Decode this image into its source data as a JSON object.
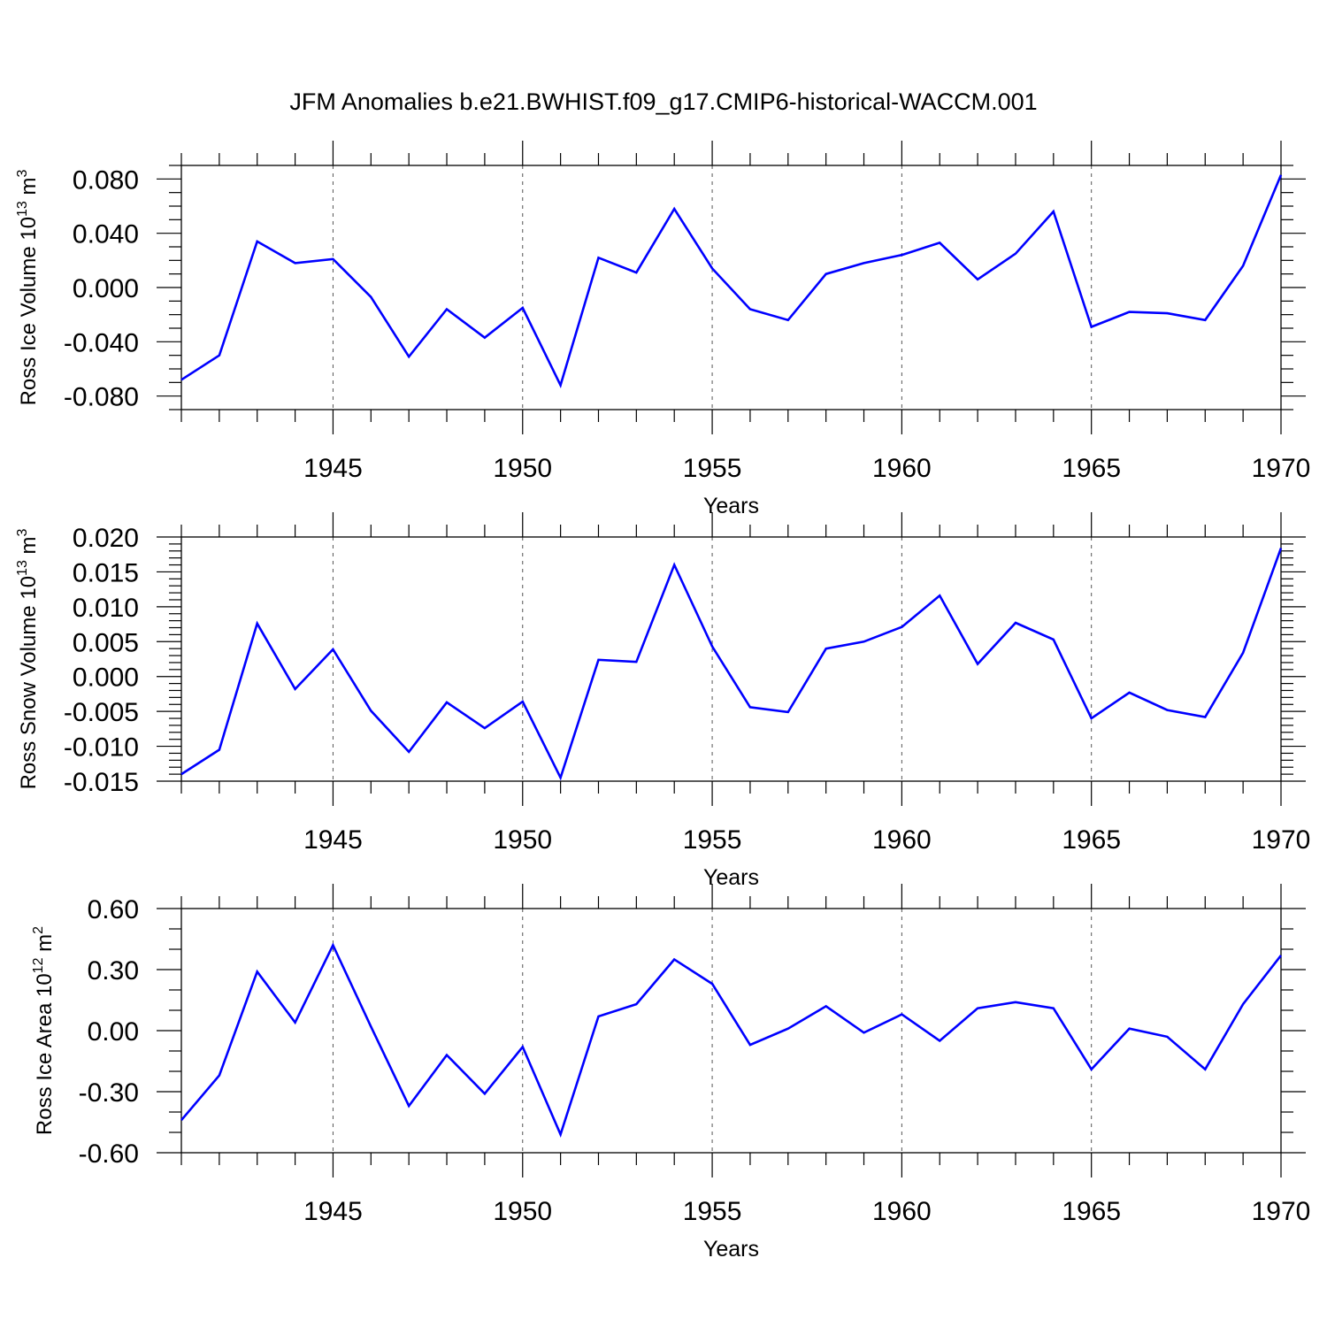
{
  "chart_data": [
    {
      "type": "line",
      "title": "JFM Anomalies b.e21.BWHIST.f09_g17.CMIP6-historical-WACCM.001",
      "xlabel": "Years",
      "ylabel": "Ross Ice Volume 10",
      "ylabel_sup": "13",
      "ylabel_unit": " m",
      "ylabel_unit_sup": "3",
      "x": [
        1941,
        1942,
        1943,
        1944,
        1945,
        1946,
        1947,
        1948,
        1949,
        1950,
        1951,
        1952,
        1953,
        1954,
        1955,
        1956,
        1957,
        1958,
        1959,
        1960,
        1961,
        1962,
        1963,
        1964,
        1965,
        1966,
        1967,
        1968,
        1969,
        1970
      ],
      "values": [
        -0.068,
        -0.05,
        0.034,
        0.018,
        0.021,
        -0.007,
        -0.051,
        -0.016,
        -0.037,
        -0.015,
        -0.072,
        0.022,
        0.011,
        0.058,
        0.014,
        -0.016,
        -0.024,
        0.01,
        0.018,
        0.024,
        0.033,
        0.006,
        0.025,
        0.056,
        -0.029,
        -0.018,
        -0.019,
        -0.024,
        0.016,
        0.083
      ],
      "xlim": [
        1941,
        1970
      ],
      "ylim": [
        -0.09,
        0.09
      ],
      "xticks": [
        1945,
        1950,
        1955,
        1960,
        1965,
        1970
      ],
      "yticks": [
        -0.08,
        -0.04,
        0.0,
        0.04,
        0.08
      ],
      "ytick_labels": [
        "-0.080",
        "-0.040",
        "0.000",
        "0.040",
        "0.080"
      ],
      "y_minor_step": 0.01,
      "grid": "dashed-vertical-at-major-x",
      "color": "#0000ff"
    },
    {
      "type": "line",
      "xlabel": "Years",
      "ylabel": "Ross Snow Volume 10",
      "ylabel_sup": "13",
      "ylabel_unit": " m",
      "ylabel_unit_sup": "3",
      "x": [
        1941,
        1942,
        1943,
        1944,
        1945,
        1946,
        1947,
        1948,
        1949,
        1950,
        1951,
        1952,
        1953,
        1954,
        1955,
        1956,
        1957,
        1958,
        1959,
        1960,
        1961,
        1962,
        1963,
        1964,
        1965,
        1966,
        1967,
        1968,
        1969,
        1970
      ],
      "values": [
        -0.014,
        -0.0105,
        0.0076,
        -0.0018,
        0.0039,
        -0.0049,
        -0.0108,
        -0.0037,
        -0.0074,
        -0.0036,
        -0.0145,
        0.0024,
        0.0021,
        0.016,
        0.0043,
        -0.0044,
        -0.0051,
        0.004,
        0.005,
        0.0071,
        0.0116,
        0.0018,
        0.0077,
        0.0053,
        -0.006,
        -0.0023,
        -0.0048,
        -0.0058,
        0.0034,
        0.0184
      ],
      "xlim": [
        1941,
        1970
      ],
      "ylim": [
        -0.015,
        0.02
      ],
      "xticks": [
        1945,
        1950,
        1955,
        1960,
        1965,
        1970
      ],
      "yticks": [
        -0.015,
        -0.01,
        -0.005,
        0.0,
        0.005,
        0.01,
        0.015,
        0.02
      ],
      "ytick_labels": [
        "-0.015",
        "-0.010",
        "-0.005",
        "0.000",
        "0.005",
        "0.010",
        "0.015",
        "0.020"
      ],
      "y_minor_step": 0.001,
      "grid": "dashed-vertical-at-major-x",
      "color": "#0000ff"
    },
    {
      "type": "line",
      "xlabel": "Years",
      "ylabel": "Ross Ice Area 10",
      "ylabel_sup": "12",
      "ylabel_unit": " m",
      "ylabel_unit_sup": "2",
      "x": [
        1941,
        1942,
        1943,
        1944,
        1945,
        1946,
        1947,
        1948,
        1949,
        1950,
        1951,
        1952,
        1953,
        1954,
        1955,
        1956,
        1957,
        1958,
        1959,
        1960,
        1961,
        1962,
        1963,
        1964,
        1965,
        1966,
        1967,
        1968,
        1969,
        1970
      ],
      "values": [
        -0.44,
        -0.22,
        0.29,
        0.04,
        0.42,
        0.02,
        -0.37,
        -0.12,
        -0.31,
        -0.08,
        -0.51,
        0.07,
        0.13,
        0.35,
        0.23,
        -0.07,
        0.01,
        0.12,
        -0.01,
        0.08,
        -0.05,
        0.11,
        0.14,
        0.11,
        -0.19,
        0.01,
        -0.03,
        -0.19,
        0.13,
        0.37
      ],
      "xlim": [
        1941,
        1970
      ],
      "ylim": [
        -0.6,
        0.6
      ],
      "xticks": [
        1945,
        1950,
        1955,
        1960,
        1965,
        1970
      ],
      "yticks": [
        -0.6,
        -0.3,
        0.0,
        0.3,
        0.6
      ],
      "ytick_labels": [
        "-0.60",
        "-0.30",
        "0.00",
        "0.30",
        "0.60"
      ],
      "y_minor_step": 0.1,
      "grid": "dashed-vertical-at-major-x",
      "color": "#0000ff"
    }
  ]
}
